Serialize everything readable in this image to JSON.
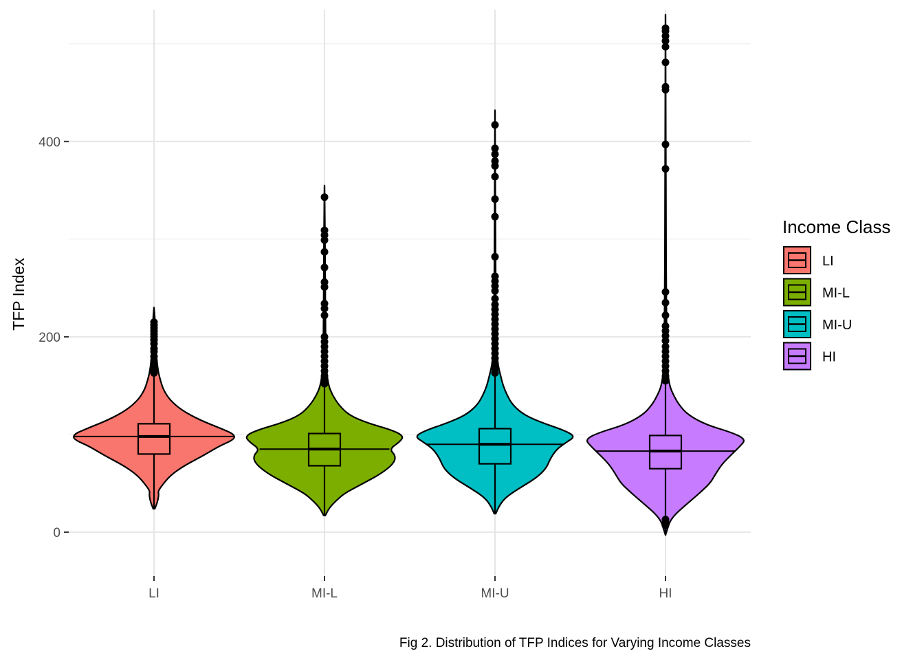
{
  "chart_data": {
    "type": "violin",
    "caption": "Fig 2. Distribution of TFP Indices for Varying Income Classes",
    "ylabel": "TFP Index",
    "xlabel": "",
    "ylim": [
      -45,
      535
    ],
    "yticks": [
      0,
      200,
      400
    ],
    "minor_yticks": [
      100,
      300,
      500
    ],
    "grid": true,
    "legend": {
      "title": "Income Class",
      "position": "right"
    },
    "categories": [
      "LI",
      "MI-L",
      "MI-U",
      "HI"
    ],
    "series": [
      {
        "name": "LI",
        "color": "#F8766D",
        "box": {
          "q1": 80,
          "median": 98,
          "q3": 111,
          "whisker_low": 24,
          "whisker_high": 158
        },
        "violin_extent": [
          24,
          230
        ],
        "density": [
          [
            24,
            0.01
          ],
          [
            30,
            0.04
          ],
          [
            38,
            0.06
          ],
          [
            42,
            0.05
          ],
          [
            48,
            0.1
          ],
          [
            58,
            0.2
          ],
          [
            68,
            0.37
          ],
          [
            78,
            0.6
          ],
          [
            88,
            0.8
          ],
          [
            95,
            0.99
          ],
          [
            100,
            0.99
          ],
          [
            105,
            0.86
          ],
          [
            115,
            0.56
          ],
          [
            125,
            0.34
          ],
          [
            135,
            0.2
          ],
          [
            145,
            0.12
          ],
          [
            155,
            0.08
          ],
          [
            165,
            0.05
          ],
          [
            180,
            0.03
          ],
          [
            200,
            0.02
          ],
          [
            220,
            0.01
          ],
          [
            230,
            0.0
          ]
        ],
        "outliers": [
          163,
          166,
          170,
          175,
          180,
          185,
          188,
          193,
          197,
          200,
          203,
          206,
          209,
          212,
          215
        ]
      },
      {
        "name": "MI-L",
        "color": "#7CAE00",
        "box": {
          "q1": 68,
          "median": 85,
          "q3": 101,
          "whisker_low": 17,
          "whisker_high": 150
        },
        "violin_extent": [
          17,
          355
        ],
        "density": [
          [
            17,
            0.01
          ],
          [
            25,
            0.06
          ],
          [
            32,
            0.14
          ],
          [
            40,
            0.25
          ],
          [
            50,
            0.48
          ],
          [
            60,
            0.7
          ],
          [
            70,
            0.85
          ],
          [
            78,
            0.88
          ],
          [
            85,
            0.8
          ],
          [
            92,
            0.92
          ],
          [
            98,
            0.98
          ],
          [
            104,
            0.85
          ],
          [
            112,
            0.52
          ],
          [
            120,
            0.3
          ],
          [
            130,
            0.18
          ],
          [
            140,
            0.1
          ],
          [
            150,
            0.05
          ],
          [
            165,
            0.025
          ],
          [
            190,
            0.015
          ],
          [
            230,
            0.01
          ],
          [
            280,
            0.008
          ],
          [
            320,
            0.005
          ],
          [
            355,
            0.0
          ]
        ],
        "outliers": [
          152,
          156,
          160,
          165,
          170,
          175,
          180,
          185,
          190,
          195,
          200,
          222,
          229,
          234,
          251,
          256,
          271,
          287,
          299,
          304,
          309,
          343
        ]
      },
      {
        "name": "MI-U",
        "color": "#00BFC4",
        "box": {
          "q1": 70,
          "median": 90,
          "q3": 106,
          "whisker_low": 19,
          "whisker_high": 160
        },
        "violin_extent": [
          19,
          432
        ],
        "density": [
          [
            19,
            0.01
          ],
          [
            25,
            0.04
          ],
          [
            35,
            0.12
          ],
          [
            45,
            0.3
          ],
          [
            55,
            0.5
          ],
          [
            65,
            0.63
          ],
          [
            75,
            0.68
          ],
          [
            85,
            0.76
          ],
          [
            92,
            0.88
          ],
          [
            98,
            0.99
          ],
          [
            104,
            0.86
          ],
          [
            112,
            0.58
          ],
          [
            120,
            0.36
          ],
          [
            130,
            0.22
          ],
          [
            140,
            0.15
          ],
          [
            150,
            0.1
          ],
          [
            160,
            0.07
          ],
          [
            170,
            0.04
          ],
          [
            185,
            0.02
          ],
          [
            210,
            0.012
          ],
          [
            260,
            0.008
          ],
          [
            330,
            0.005
          ],
          [
            432,
            0.0
          ]
        ],
        "outliers": [
          163,
          168,
          173,
          178,
          183,
          188,
          193,
          198,
          203,
          208,
          213,
          218,
          223,
          228,
          233,
          239,
          247,
          252,
          257,
          262,
          282,
          323,
          341,
          364,
          375,
          380,
          387,
          393,
          417
        ]
      },
      {
        "name": "HI",
        "color": "#C77CFF",
        "box": {
          "q1": 65,
          "median": 83,
          "q3": 99,
          "whisker_low": -3,
          "whisker_high": 149
        },
        "violin_extent": [
          -3,
          530
        ],
        "density": [
          [
            -3,
            0.0
          ],
          [
            5,
            0.03
          ],
          [
            12,
            0.06
          ],
          [
            20,
            0.14
          ],
          [
            30,
            0.28
          ],
          [
            40,
            0.42
          ],
          [
            50,
            0.55
          ],
          [
            60,
            0.62
          ],
          [
            70,
            0.7
          ],
          [
            80,
            0.82
          ],
          [
            88,
            0.92
          ],
          [
            95,
            0.99
          ],
          [
            102,
            0.82
          ],
          [
            110,
            0.5
          ],
          [
            120,
            0.28
          ],
          [
            130,
            0.17
          ],
          [
            140,
            0.1
          ],
          [
            150,
            0.05
          ],
          [
            165,
            0.025
          ],
          [
            190,
            0.015
          ],
          [
            240,
            0.01
          ],
          [
            320,
            0.006
          ],
          [
            420,
            0.004
          ],
          [
            530,
            0.0
          ]
        ],
        "outliers": [
          7,
          10,
          13,
          155,
          160,
          165,
          170,
          175,
          180,
          185,
          190,
          196,
          201,
          206,
          211,
          222,
          235,
          246,
          372,
          397,
          453,
          456,
          481,
          497,
          503,
          508,
          513,
          516
        ]
      }
    ]
  }
}
